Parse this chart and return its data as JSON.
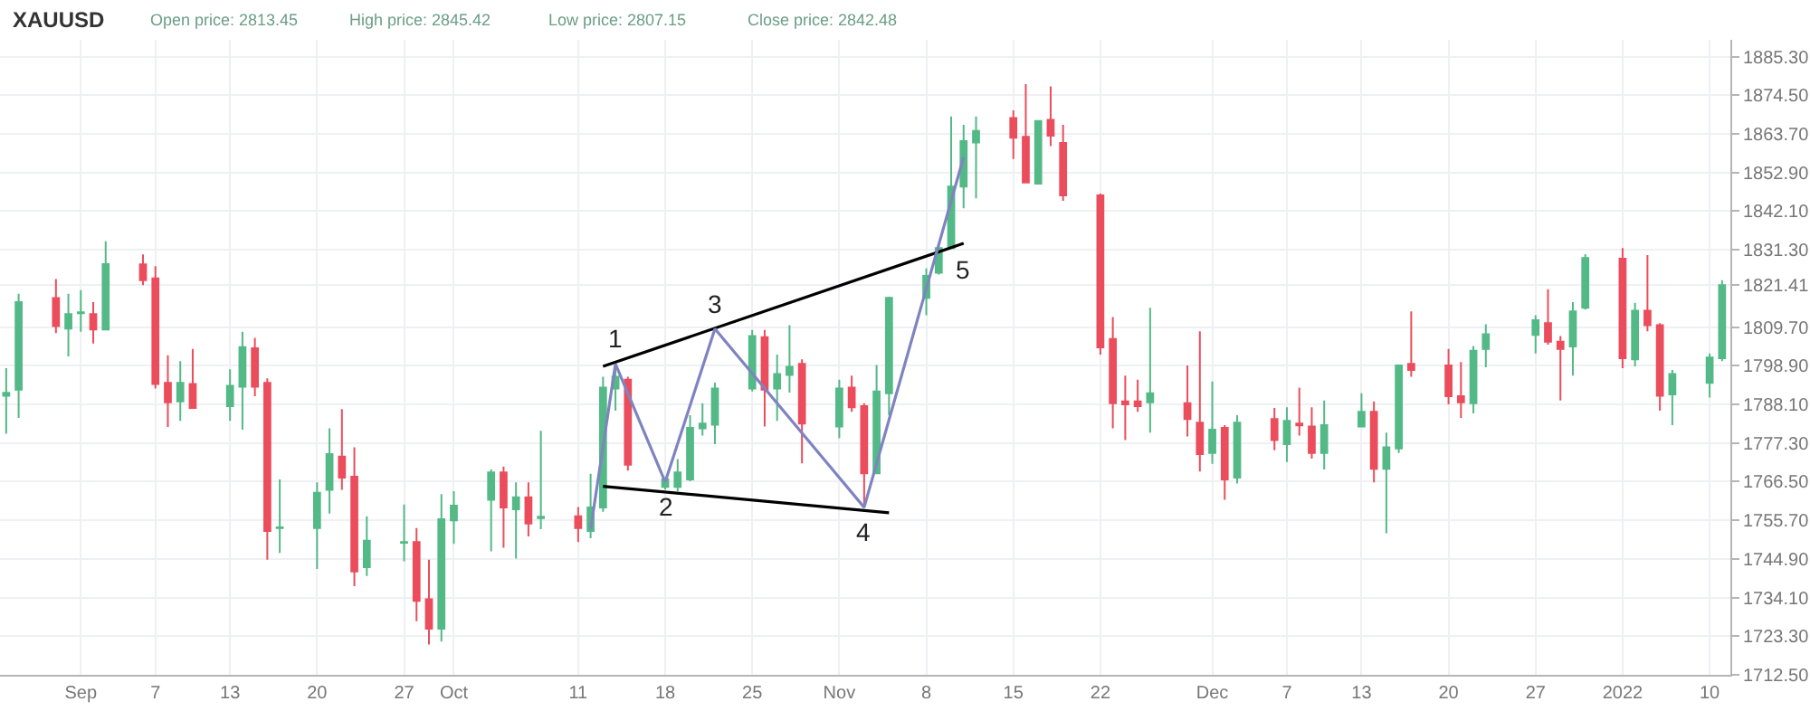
{
  "chart_data": {
    "type": "candlestick",
    "title": "XAUUSD",
    "annotations": [
      "Open price: 2813.45",
      "High price: 2845.42",
      "Low price: 2807.15",
      "Close price: 2842.48",
      {
        "text": "1",
        "x": "2021-10-14",
        "y": 1799.4
      },
      {
        "text": "2",
        "x": "2021-10-18",
        "y": 1766.4
      },
      {
        "text": "3",
        "x": "2021-10-22",
        "y": 1809.2
      },
      {
        "text": "4",
        "x": "2021-11-03",
        "y": 1759.3
      },
      {
        "text": "5",
        "x": "2021-11-11",
        "y": 1833.1
      }
    ],
    "x": [
      "2021-08-26",
      "2021-08-27",
      "2021-08-30",
      "2021-08-31",
      "2021-09-01",
      "2021-09-02",
      "2021-09-03",
      "2021-09-06",
      "2021-09-07",
      "2021-09-08",
      "2021-09-09",
      "2021-09-10",
      "2021-09-13",
      "2021-09-14",
      "2021-09-15",
      "2021-09-16",
      "2021-09-17",
      "2021-09-20",
      "2021-09-21",
      "2021-09-22",
      "2021-09-23",
      "2021-09-24",
      "2021-09-27",
      "2021-09-28",
      "2021-09-29",
      "2021-09-30",
      "2021-10-01",
      "2021-10-04",
      "2021-10-05",
      "2021-10-06",
      "2021-10-07",
      "2021-10-08",
      "2021-10-11",
      "2021-10-12",
      "2021-10-13",
      "2021-10-14",
      "2021-10-15",
      "2021-10-18",
      "2021-10-19",
      "2021-10-20",
      "2021-10-21",
      "2021-10-22",
      "2021-10-25",
      "2021-10-26",
      "2021-10-27",
      "2021-10-28",
      "2021-10-29",
      "2021-11-01",
      "2021-11-02",
      "2021-11-03",
      "2021-11-04",
      "2021-11-05",
      "2021-11-08",
      "2021-11-09",
      "2021-11-10",
      "2021-11-11",
      "2021-11-12",
      "2021-11-15",
      "2021-11-16",
      "2021-11-17",
      "2021-11-18",
      "2021-11-19",
      "2021-11-22",
      "2021-11-23",
      "2021-11-24",
      "2021-11-25",
      "2021-11-26",
      "2021-11-29",
      "2021-11-30",
      "2021-12-01",
      "2021-12-02",
      "2021-12-03",
      "2021-12-06",
      "2021-12-07",
      "2021-12-08",
      "2021-12-09",
      "2021-12-10",
      "2021-12-13",
      "2021-12-14",
      "2021-12-15",
      "2021-12-16",
      "2021-12-17",
      "2021-12-20",
      "2021-12-21",
      "2021-12-22",
      "2021-12-23",
      "2021-12-27",
      "2021-12-28",
      "2021-12-29",
      "2021-12-30",
      "2021-12-31",
      "2022-01-03",
      "2022-01-04",
      "2022-01-05",
      "2022-01-06",
      "2022-01-07",
      "2022-01-10",
      "2022-01-11"
    ],
    "ohlc": [
      [
        1790.5,
        1798.2,
        1779.9,
        1791.3
      ],
      [
        1792.2,
        1819.0,
        1784.3,
        1816.7
      ],
      [
        1817.8,
        1823.1,
        1808.0,
        1810.0
      ],
      [
        1809.3,
        1819.0,
        1801.5,
        1813.3
      ],
      [
        1813.6,
        1820.0,
        1808.4,
        1813.8
      ],
      [
        1813.3,
        1816.7,
        1805.1,
        1809.0
      ],
      [
        1809.0,
        1833.7,
        1809.0,
        1827.3
      ],
      [
        1827.2,
        1830.0,
        1821.4,
        1822.8
      ],
      [
        1823.3,
        1826.7,
        1792.5,
        1793.8
      ],
      [
        1794.1,
        1801.8,
        1781.8,
        1788.7
      ],
      [
        1788.9,
        1800.2,
        1783.5,
        1794.1
      ],
      [
        1793.8,
        1803.6,
        1787.1,
        1787.1
      ],
      [
        1787.6,
        1797.9,
        1783.5,
        1793.3
      ],
      [
        1793.0,
        1808.4,
        1781.0,
        1804.1
      ],
      [
        1803.8,
        1806.7,
        1790.4,
        1793.0
      ],
      [
        1794.1,
        1795.4,
        1744.7,
        1752.7
      ],
      [
        1753.5,
        1767.1,
        1746.6,
        1753.7
      ],
      [
        1753.5,
        1766.3,
        1742.1,
        1763.4
      ],
      [
        1764.2,
        1781.4,
        1757.6,
        1774.2
      ],
      [
        1773.5,
        1786.8,
        1764.2,
        1767.6
      ],
      [
        1767.9,
        1776.1,
        1737.3,
        1741.4
      ],
      [
        1742.6,
        1756.8,
        1740.1,
        1750.0
      ],
      [
        1749.4,
        1760.1,
        1744.2,
        1749.6
      ],
      [
        1749.6,
        1753.5,
        1727.5,
        1733.2
      ],
      [
        1733.6,
        1744.7,
        1721.0,
        1725.4
      ],
      [
        1725.4,
        1763.0,
        1721.8,
        1756.0
      ],
      [
        1755.7,
        1763.8,
        1749.1,
        1759.8
      ],
      [
        1761.4,
        1769.9,
        1747.0,
        1769.1
      ],
      [
        1769.1,
        1770.7,
        1748.0,
        1759.3
      ],
      [
        1758.8,
        1766.3,
        1745.0,
        1762.1
      ],
      [
        1762.1,
        1766.3,
        1751.2,
        1754.8
      ],
      [
        1756.3,
        1780.7,
        1753.2,
        1756.7
      ],
      [
        1756.8,
        1759.4,
        1749.6,
        1753.5
      ],
      [
        1752.7,
        1768.7,
        1750.7,
        1759.3
      ],
      [
        1759.3,
        1795.8,
        1758.1,
        1792.8
      ],
      [
        1792.5,
        1799.4,
        1786.3,
        1795.8
      ],
      [
        1795.0,
        1795.8,
        1769.6,
        1771.2
      ],
      [
        1765.0,
        1767.1,
        1764.3,
        1767.1
      ],
      [
        1765.0,
        1772.8,
        1763.8,
        1769.1
      ],
      [
        1767.1,
        1785.1,
        1766.6,
        1781.5
      ],
      [
        1781.4,
        1788.4,
        1779.4,
        1782.7
      ],
      [
        1782.4,
        1794.2,
        1777.0,
        1792.5
      ],
      [
        1792.5,
        1808.9,
        1791.7,
        1807.2
      ],
      [
        1806.9,
        1808.9,
        1781.9,
        1792.2
      ],
      [
        1792.5,
        1802.0,
        1783.5,
        1796.6
      ],
      [
        1796.3,
        1810.2,
        1791.4,
        1798.6
      ],
      [
        1799.4,
        1800.7,
        1771.6,
        1782.7
      ],
      [
        1781.9,
        1795.0,
        1778.6,
        1792.5
      ],
      [
        1792.8,
        1796.1,
        1786.0,
        1787.3
      ],
      [
        1787.6,
        1788.4,
        1759.8,
        1768.8
      ],
      [
        1768.8,
        1799.1,
        1768.8,
        1791.7
      ],
      [
        1791.2,
        1818.2,
        1785.1,
        1817.9
      ],
      [
        1817.9,
        1826.1,
        1813.0,
        1824.0
      ],
      [
        1824.9,
        1833.1,
        1824.4,
        1831.8
      ],
      [
        1831.8,
        1868.6,
        1831.8,
        1849.0
      ],
      [
        1849.0,
        1866.2,
        1842.9,
        1861.7
      ],
      [
        1861.3,
        1868.6,
        1845.7,
        1864.5
      ],
      [
        1868.1,
        1870.3,
        1856.7,
        1862.6
      ],
      [
        1862.9,
        1877.6,
        1850.1,
        1850.1
      ],
      [
        1849.8,
        1867.3,
        1849.8,
        1867.3
      ],
      [
        1867.6,
        1877.0,
        1860.3,
        1863.2
      ],
      [
        1861.2,
        1866.2,
        1845.0,
        1846.5
      ],
      [
        1846.5,
        1847.0,
        1802.0,
        1804.0
      ],
      [
        1806.4,
        1812.5,
        1781.4,
        1788.4
      ],
      [
        1788.9,
        1796.1,
        1778.1,
        1788.1
      ],
      [
        1788.9,
        1795.0,
        1786.0,
        1787.6
      ],
      [
        1788.7,
        1815.1,
        1780.2,
        1791.2
      ],
      [
        1788.4,
        1799.0,
        1779.1,
        1784.0
      ],
      [
        1783.0,
        1808.5,
        1769.3,
        1774.2
      ],
      [
        1774.5,
        1794.5,
        1771.5,
        1781.0
      ],
      [
        1781.5,
        1782.3,
        1761.4,
        1767.1
      ],
      [
        1767.6,
        1785.1,
        1766.0,
        1783.0
      ],
      [
        1784.0,
        1787.1,
        1775.3,
        1778.1
      ],
      [
        1777.0,
        1787.3,
        1772.0,
        1783.5
      ],
      [
        1782.7,
        1792.8,
        1779.4,
        1782.2
      ],
      [
        1781.9,
        1787.3,
        1772.9,
        1774.5
      ],
      [
        1774.5,
        1789.2,
        1769.9,
        1782.3
      ],
      [
        1781.9,
        1791.2,
        1781.9,
        1786.0
      ],
      [
        1786.0,
        1788.9,
        1766.3,
        1770.1
      ],
      [
        1770.1,
        1780.2,
        1752.1,
        1776.1
      ],
      [
        1775.8,
        1799.0,
        1774.5,
        1799.0
      ],
      [
        1799.4,
        1814.1,
        1795.8,
        1797.7
      ],
      [
        1799.0,
        1803.6,
        1788.1,
        1790.4
      ],
      [
        1790.4,
        1799.9,
        1784.3,
        1788.7
      ],
      [
        1788.4,
        1804.4,
        1785.6,
        1803.1
      ],
      [
        1803.6,
        1810.5,
        1798.5,
        1807.7
      ],
      [
        1807.5,
        1813.0,
        1802.3,
        1811.6
      ],
      [
        1810.8,
        1820.3,
        1804.8,
        1805.6
      ],
      [
        1805.6,
        1807.2,
        1789.2,
        1803.6
      ],
      [
        1804.3,
        1816.7,
        1796.1,
        1814.1
      ],
      [
        1815.1,
        1830.1,
        1814.6,
        1829.0
      ],
      [
        1828.8,
        1831.8,
        1798.2,
        1801.0
      ],
      [
        1800.7,
        1816.5,
        1798.7,
        1814.3
      ],
      [
        1814.3,
        1829.8,
        1808.5,
        1810.2
      ],
      [
        1810.2,
        1810.8,
        1786.3,
        1790.5
      ],
      [
        1790.9,
        1797.7,
        1782.3,
        1796.6
      ],
      [
        1794.1,
        1802.3,
        1790.0,
        1801.2
      ],
      [
        1801.0,
        1822.8,
        1800.2,
        1821.41
      ]
    ],
    "colors": [
      "#53b987",
      "#53b987",
      "#eb4d5c",
      "#53b987",
      "#53b987",
      "#eb4d5c",
      "#53b987",
      "#eb4d5c",
      "#eb4d5c",
      "#eb4d5c",
      "#53b987",
      "#eb4d5c",
      "#53b987",
      "#53b987",
      "#eb4d5c",
      "#eb4d5c",
      "#53b987",
      "#53b987",
      "#53b987",
      "#eb4d5c",
      "#eb4d5c",
      "#53b987",
      "#53b987",
      "#eb4d5c",
      "#eb4d5c",
      "#53b987",
      "#53b987",
      "#53b987",
      "#eb4d5c",
      "#53b987",
      "#eb4d5c",
      "#53b987",
      "#eb4d5c",
      "#53b987",
      "#53b987",
      "#53b987",
      "#eb4d5c",
      "#53b987",
      "#53b987",
      "#53b987",
      "#53b987",
      "#53b987",
      "#53b987",
      "#eb4d5c",
      "#53b987",
      "#53b987",
      "#eb4d5c",
      "#53b987",
      "#eb4d5c",
      "#eb4d5c",
      "#53b987",
      "#53b987",
      "#53b987",
      "#53b987",
      "#53b987",
      "#53b987",
      "#53b987",
      "#eb4d5c",
      "#eb4d5c",
      "#53b987",
      "#eb4d5c",
      "#eb4d5c",
      "#eb4d5c",
      "#eb4d5c",
      "#eb4d5c",
      "#eb4d5c",
      "#53b987",
      "#eb4d5c",
      "#eb4d5c",
      "#53b987",
      "#eb4d5c",
      "#53b987",
      "#eb4d5c",
      "#53b987",
      "#eb4d5c",
      "#eb4d5c",
      "#53b987",
      "#53b987",
      "#eb4d5c",
      "#53b987",
      "#53b987",
      "#eb4d5c",
      "#eb4d5c",
      "#eb4d5c",
      "#53b987",
      "#53b987",
      "#53b987",
      "#eb4d5c",
      "#eb4d5c",
      "#53b987",
      "#53b987",
      "#eb4d5c",
      "#53b987",
      "#eb4d5c",
      "#eb4d5c",
      "#53b987",
      "#53b987",
      "#53b987"
    ],
    "series": [
      {
        "type": "line",
        "color": "#000000",
        "x": [
          "2021-10-13",
          "2021-11-11"
        ],
        "values": [
          1798.7,
          1833.1
        ]
      },
      {
        "type": "line",
        "color": "#000000",
        "x": [
          "2021-10-13",
          "2021-11-05"
        ],
        "values": [
          1765.2,
          1757.8
        ]
      },
      {
        "type": "line",
        "color": "#7f84c0",
        "x": [
          "2021-10-12",
          "2021-10-14",
          "2021-10-18",
          "2021-10-22",
          "2021-11-03",
          "2021-11-11"
        ],
        "values": [
          1753.2,
          1799.4,
          1766.4,
          1809.2,
          1759.3,
          1857.2
        ]
      }
    ],
    "xlim": [
      "2021-08-25T12:00",
      "2022-01-11T16:00"
    ],
    "xticks": [
      {
        "value": "2021-09-01",
        "label": "Sep"
      },
      {
        "value": "2021-09-07",
        "label": "7"
      },
      {
        "value": "2021-09-13",
        "label": "13"
      },
      {
        "value": "2021-09-20",
        "label": "20"
      },
      {
        "value": "2021-09-27",
        "label": "27"
      },
      {
        "value": "2021-10-01",
        "label": "Oct"
      },
      {
        "value": "2021-10-11",
        "label": "11"
      },
      {
        "value": "2021-10-18",
        "label": "18"
      },
      {
        "value": "2021-10-25",
        "label": "25"
      },
      {
        "value": "2021-11-01",
        "label": "Nov"
      },
      {
        "value": "2021-11-08",
        "label": "8"
      },
      {
        "value": "2021-11-15",
        "label": "15"
      },
      {
        "value": "2021-11-22",
        "label": "22"
      },
      {
        "value": "2021-12-01",
        "label": "Dec"
      },
      {
        "value": "2021-12-07",
        "label": "7"
      },
      {
        "value": "2021-12-13",
        "label": "13"
      },
      {
        "value": "2021-12-20",
        "label": "20"
      },
      {
        "value": "2021-12-27",
        "label": "27"
      },
      {
        "value": "2022-01-03",
        "label": "2022"
      },
      {
        "value": "2022-01-10",
        "label": "10"
      }
    ],
    "ylim": [
      1712.5,
      1890
    ],
    "yticks": [
      {
        "value": 1712.5,
        "label": "1712.50"
      },
      {
        "value": 1723.3,
        "label": "1723.30"
      },
      {
        "value": 1734.1,
        "label": "1734.10"
      },
      {
        "value": 1744.9,
        "label": "1744.90"
      },
      {
        "value": 1755.7,
        "label": "1755.70"
      },
      {
        "value": 1766.5,
        "label": "1766.50"
      },
      {
        "value": 1777.3,
        "label": "1777.30"
      },
      {
        "value": 1788.1,
        "label": "1788.10"
      },
      {
        "value": 1798.9,
        "label": "1798.90"
      },
      {
        "value": 1809.7,
        "label": "1809.70"
      },
      {
        "value": 1821.41,
        "label": "1821.41"
      },
      {
        "value": 1831.3,
        "label": "1831.30"
      },
      {
        "value": 1842.1,
        "label": "1842.10"
      },
      {
        "value": 1852.9,
        "label": "1852.90"
      },
      {
        "value": 1863.7,
        "label": "1863.70"
      },
      {
        "value": 1874.5,
        "label": "1874.50"
      },
      {
        "value": 1885.3,
        "label": "1885.30"
      }
    ],
    "grid": true,
    "marker": "none",
    "line_style": "solid"
  }
}
